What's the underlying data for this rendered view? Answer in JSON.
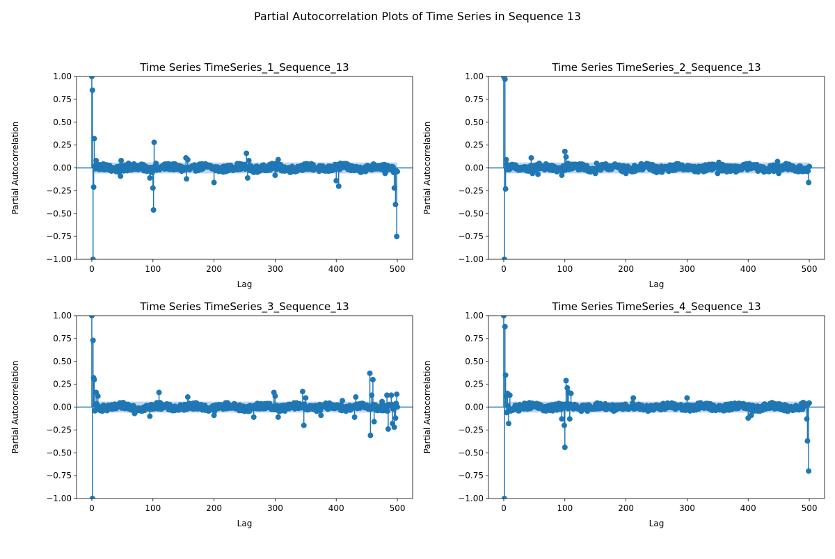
{
  "figure": {
    "title": "Partial Autocorrelation Plots of Time Series in Sequence 13"
  },
  "colors": {
    "stem": "#1f77b4",
    "band": "#aec7e8",
    "axis": "#000000"
  },
  "chart_data": [
    {
      "type": "scatter",
      "title": "Time Series TimeSeries_1_Sequence_13",
      "xlabel": "Lag",
      "ylabel": "Partial Autocorrelation",
      "xlim": [
        -25,
        525
      ],
      "ylim": [
        -1.0,
        1.0
      ],
      "xticks": [
        0,
        100,
        200,
        300,
        400,
        500
      ],
      "yticks": [
        -1.0,
        -0.75,
        -0.5,
        -0.25,
        0.0,
        0.25,
        0.5,
        0.75,
        1.0
      ],
      "confidence_band": 0.06,
      "max_lag": 500,
      "highlights": [
        [
          0,
          1.0
        ],
        [
          1,
          0.85
        ],
        [
          2,
          -1.0
        ],
        [
          3,
          -0.21
        ],
        [
          4,
          0.32
        ],
        [
          5,
          0.02
        ],
        [
          7,
          0.08
        ],
        [
          47,
          -0.09
        ],
        [
          48,
          0.08
        ],
        [
          60,
          0.05
        ],
        [
          95,
          -0.11
        ],
        [
          100,
          -0.22
        ],
        [
          101,
          -0.46
        ],
        [
          102,
          0.28
        ],
        [
          105,
          0.05
        ],
        [
          154,
          0.11
        ],
        [
          155,
          -0.12
        ],
        [
          157,
          0.09
        ],
        [
          200,
          -0.16
        ],
        [
          253,
          0.16
        ],
        [
          255,
          -0.11
        ],
        [
          257,
          0.08
        ],
        [
          300,
          -0.08
        ],
        [
          305,
          0.09
        ],
        [
          400,
          -0.14
        ],
        [
          404,
          -0.2
        ],
        [
          407,
          0.05
        ],
        [
          480,
          -0.06
        ],
        [
          495,
          -0.22
        ],
        [
          497,
          -0.4
        ],
        [
          499,
          -0.75
        ]
      ]
    },
    {
      "type": "scatter",
      "title": "Time Series TimeSeries_2_Sequence_13",
      "xlabel": "Lag",
      "ylabel": "Partial Autocorrelation",
      "xlim": [
        -25,
        525
      ],
      "ylim": [
        -1.0,
        1.0
      ],
      "xticks": [
        0,
        100,
        200,
        300,
        400,
        500
      ],
      "yticks": [
        -1.0,
        -0.75,
        -0.5,
        -0.25,
        0.0,
        0.25,
        0.5,
        0.75,
        1.0
      ],
      "confidence_band": 0.06,
      "max_lag": 500,
      "highlights": [
        [
          0,
          1.0
        ],
        [
          1,
          -1.0
        ],
        [
          2,
          0.97
        ],
        [
          3,
          -0.23
        ],
        [
          4,
          0.09
        ],
        [
          45,
          0.11
        ],
        [
          47,
          -0.06
        ],
        [
          56,
          -0.07
        ],
        [
          58,
          0.05
        ],
        [
          95,
          -0.08
        ],
        [
          100,
          0.18
        ],
        [
          102,
          0.12
        ],
        [
          105,
          0.05
        ],
        [
          150,
          -0.06
        ],
        [
          152,
          0.05
        ],
        [
          200,
          -0.06
        ],
        [
          250,
          -0.05
        ],
        [
          350,
          -0.06
        ],
        [
          352,
          0.06
        ],
        [
          400,
          0.03
        ],
        [
          448,
          0.07
        ],
        [
          450,
          -0.06
        ],
        [
          499,
          -0.16
        ]
      ]
    },
    {
      "type": "scatter",
      "title": "Time Series TimeSeries_3_Sequence_13",
      "xlabel": "Lag",
      "ylabel": "Partial Autocorrelation",
      "xlim": [
        -25,
        525
      ],
      "ylim": [
        -1.0,
        1.0
      ],
      "xticks": [
        0,
        100,
        200,
        300,
        400,
        500
      ],
      "yticks": [
        -1.0,
        -0.75,
        -0.5,
        -0.25,
        0.0,
        0.25,
        0.5,
        0.75,
        1.0
      ],
      "confidence_band": 0.06,
      "max_lag": 500,
      "highlights": [
        [
          0,
          1.0
        ],
        [
          1,
          -1.0
        ],
        [
          2,
          0.73
        ],
        [
          3,
          0.32
        ],
        [
          4,
          0.3
        ],
        [
          5,
          -0.04
        ],
        [
          7,
          0.16
        ],
        [
          10,
          0.12
        ],
        [
          70,
          -0.07
        ],
        [
          95,
          -0.1
        ],
        [
          110,
          0.16
        ],
        [
          157,
          0.11
        ],
        [
          200,
          -0.09
        ],
        [
          265,
          -0.11
        ],
        [
          298,
          0.16
        ],
        [
          300,
          0.12
        ],
        [
          305,
          -0.11
        ],
        [
          345,
          0.17
        ],
        [
          347,
          -0.2
        ],
        [
          350,
          0.1
        ],
        [
          375,
          -0.09
        ],
        [
          410,
          0.07
        ],
        [
          430,
          -0.11
        ],
        [
          432,
          0.11
        ],
        [
          455,
          0.37
        ],
        [
          456,
          -0.31
        ],
        [
          458,
          0.13
        ],
        [
          460,
          0.3
        ],
        [
          462,
          -0.16
        ],
        [
          475,
          0.06
        ],
        [
          483,
          0.13
        ],
        [
          485,
          -0.24
        ],
        [
          490,
          0.13
        ],
        [
          492,
          -0.18
        ],
        [
          495,
          -0.22
        ],
        [
          497,
          -0.12
        ],
        [
          499,
          0.14
        ]
      ]
    },
    {
      "type": "scatter",
      "title": "Time Series TimeSeries_4_Sequence_13",
      "xlabel": "Lag",
      "ylabel": "Partial Autocorrelation",
      "xlim": [
        -25,
        525
      ],
      "ylim": [
        -1.0,
        1.0
      ],
      "xticks": [
        0,
        100,
        200,
        300,
        400,
        500
      ],
      "yticks": [
        -1.0,
        -0.75,
        -0.5,
        -0.25,
        0.0,
        0.25,
        0.5,
        0.75,
        1.0
      ],
      "confidence_band": 0.06,
      "max_lag": 500,
      "highlights": [
        [
          0,
          1.0
        ],
        [
          1,
          -1.0
        ],
        [
          2,
          0.88
        ],
        [
          3,
          0.35
        ],
        [
          4,
          0.12
        ],
        [
          5,
          -0.06
        ],
        [
          6,
          0.15
        ],
        [
          8,
          -0.18
        ],
        [
          10,
          0.13
        ],
        [
          95,
          -0.13
        ],
        [
          99,
          -0.2
        ],
        [
          100,
          -0.44
        ],
        [
          102,
          0.29
        ],
        [
          104,
          0.21
        ],
        [
          106,
          0.16
        ],
        [
          108,
          -0.13
        ],
        [
          110,
          0.15
        ],
        [
          212,
          0.1
        ],
        [
          300,
          0.1
        ],
        [
          400,
          -0.12
        ],
        [
          405,
          -0.09
        ],
        [
          490,
          0.05
        ],
        [
          496,
          -0.13
        ],
        [
          497,
          -0.37
        ],
        [
          499,
          -0.7
        ]
      ]
    }
  ]
}
